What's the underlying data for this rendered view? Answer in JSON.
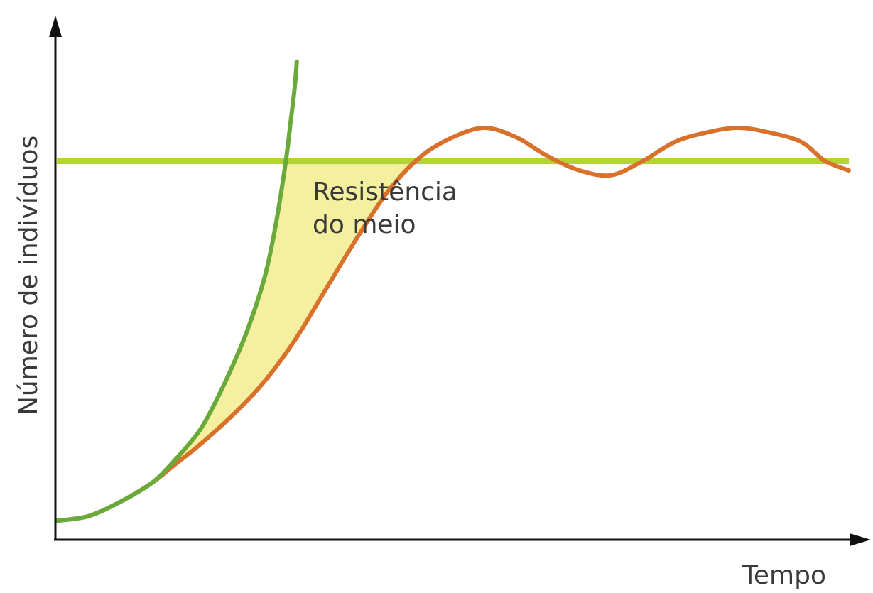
{
  "chart_data": {
    "type": "line",
    "xlabel": "Tempo",
    "ylabel": "Número de indivíduos",
    "annotations": [
      {
        "line1": "Resistência",
        "line2": "do meio"
      }
    ],
    "colors": {
      "exponential": "#6aaa3a",
      "logistic": "#d9712a",
      "carrying_capacity": "#b4d335",
      "resistance_fill": "#f4f0a0"
    },
    "series": [
      {
        "kind": "exponential",
        "x": [
          0.0,
          0.04,
          0.08,
          0.12,
          0.15,
          0.18,
          0.2,
          0.22,
          0.24,
          0.26,
          0.27,
          0.28,
          0.29,
          0.295,
          0.3,
          0.303
        ],
        "y": [
          0.04,
          0.05,
          0.08,
          0.12,
          0.17,
          0.23,
          0.29,
          0.36,
          0.44,
          0.54,
          0.61,
          0.7,
          0.81,
          0.88,
          0.95,
          1.01
        ]
      },
      {
        "kind": "logistic",
        "x": [
          0.0,
          0.04,
          0.08,
          0.12,
          0.15,
          0.18,
          0.22,
          0.26,
          0.3,
          0.34,
          0.38,
          0.42,
          0.46,
          0.5,
          0.54,
          0.58,
          0.62,
          0.66,
          0.7,
          0.74,
          0.78,
          0.82,
          0.86,
          0.9,
          0.94,
          0.97,
          1.0
        ],
        "y": [
          0.04,
          0.05,
          0.08,
          0.12,
          0.16,
          0.2,
          0.26,
          0.33,
          0.42,
          0.53,
          0.64,
          0.74,
          0.81,
          0.85,
          0.87,
          0.85,
          0.81,
          0.78,
          0.77,
          0.8,
          0.84,
          0.86,
          0.87,
          0.86,
          0.84,
          0.8,
          0.78
        ]
      }
    ],
    "carrying_capacity": 0.8,
    "xlim": [
      0,
      1
    ],
    "ylim": [
      0,
      1.05
    ]
  }
}
